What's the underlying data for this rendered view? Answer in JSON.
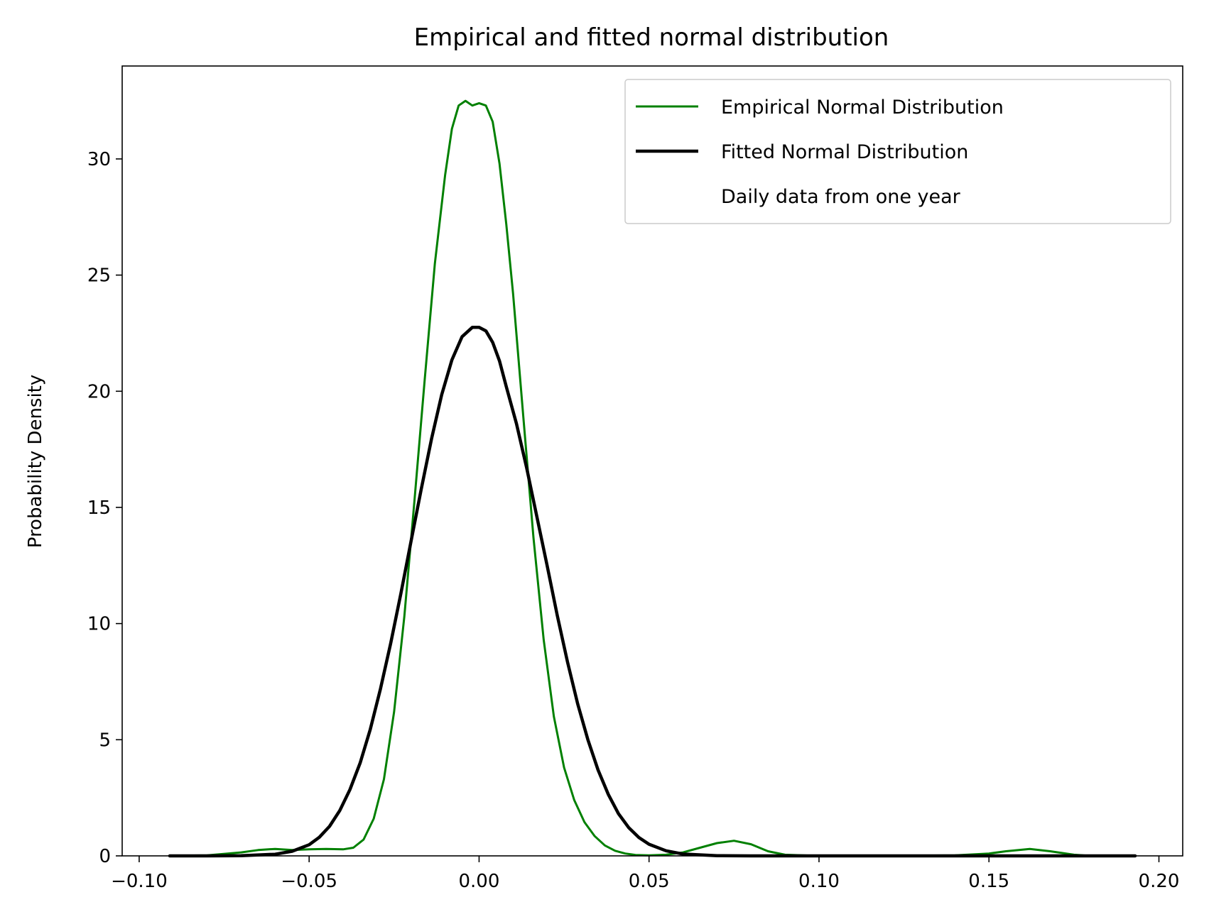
{
  "chart_data": {
    "type": "line",
    "title": "Empirical and fitted normal distribution",
    "xlabel": "",
    "ylabel": "Probability Density",
    "xlim": [
      -0.105,
      0.207
    ],
    "ylim": [
      0,
      34
    ],
    "xticks": [
      -0.1,
      -0.05,
      0.0,
      0.05,
      0.1,
      0.15,
      0.2
    ],
    "xtick_labels": [
      "−0.10",
      "−0.05",
      "0.00",
      "0.05",
      "0.10",
      "0.15",
      "0.20"
    ],
    "yticks": [
      0,
      5,
      10,
      15,
      20,
      25,
      30
    ],
    "ytick_labels": [
      "0",
      "5",
      "10",
      "15",
      "20",
      "25",
      "30"
    ],
    "grid": false,
    "legend_position": "top-right",
    "legend_note": "Daily data from one year",
    "series": [
      {
        "name": "Empirical Normal Distribution",
        "color": "#008000",
        "x": [
          -0.091,
          -0.08,
          -0.07,
          -0.065,
          -0.06,
          -0.055,
          -0.05,
          -0.045,
          -0.04,
          -0.037,
          -0.034,
          -0.031,
          -0.028,
          -0.025,
          -0.022,
          -0.019,
          -0.016,
          -0.013,
          -0.01,
          -0.008,
          -0.006,
          -0.004,
          -0.002,
          0.0,
          0.002,
          0.004,
          0.006,
          0.008,
          0.01,
          0.013,
          0.016,
          0.019,
          0.022,
          0.025,
          0.028,
          0.031,
          0.034,
          0.037,
          0.04,
          0.043,
          0.046,
          0.05,
          0.055,
          0.06,
          0.065,
          0.07,
          0.075,
          0.08,
          0.085,
          0.09,
          0.1,
          0.12,
          0.14,
          0.15,
          0.155,
          0.162,
          0.168,
          0.175,
          0.18,
          0.193
        ],
        "y": [
          0.0,
          0.02,
          0.15,
          0.25,
          0.3,
          0.25,
          0.28,
          0.3,
          0.28,
          0.35,
          0.7,
          1.6,
          3.3,
          6.2,
          10.3,
          15.3,
          20.5,
          25.5,
          29.3,
          31.3,
          32.3,
          32.5,
          32.3,
          32.4,
          32.3,
          31.6,
          29.8,
          27.2,
          24.2,
          18.9,
          13.7,
          9.3,
          6.0,
          3.8,
          2.4,
          1.45,
          0.85,
          0.45,
          0.22,
          0.1,
          0.04,
          0.02,
          0.05,
          0.15,
          0.35,
          0.55,
          0.65,
          0.5,
          0.2,
          0.05,
          0.0,
          0.0,
          0.02,
          0.1,
          0.2,
          0.3,
          0.2,
          0.05,
          0.0,
          0.0
        ]
      },
      {
        "name": "Fitted Normal Distribution",
        "color": "#000000",
        "x": [
          -0.091,
          -0.08,
          -0.07,
          -0.06,
          -0.055,
          -0.05,
          -0.047,
          -0.044,
          -0.041,
          -0.038,
          -0.035,
          -0.032,
          -0.029,
          -0.026,
          -0.023,
          -0.02,
          -0.017,
          -0.014,
          -0.011,
          -0.008,
          -0.005,
          -0.002,
          0.0,
          0.002,
          0.004,
          0.006,
          0.008,
          0.011,
          0.014,
          0.017,
          0.02,
          0.023,
          0.026,
          0.029,
          0.032,
          0.035,
          0.038,
          0.041,
          0.044,
          0.047,
          0.05,
          0.055,
          0.06,
          0.07,
          0.08,
          0.1,
          0.15,
          0.193
        ],
        "y": [
          0.0,
          0.0,
          0.01,
          0.07,
          0.2,
          0.48,
          0.8,
          1.27,
          1.95,
          2.85,
          4.0,
          5.45,
          7.2,
          9.15,
          11.3,
          13.55,
          15.8,
          17.95,
          19.85,
          21.35,
          22.35,
          22.75,
          22.75,
          22.6,
          22.1,
          21.3,
          20.2,
          18.6,
          16.7,
          14.6,
          12.5,
          10.35,
          8.35,
          6.55,
          5.0,
          3.7,
          2.65,
          1.82,
          1.22,
          0.79,
          0.5,
          0.22,
          0.08,
          0.01,
          0.0,
          0.0,
          0.0,
          0.0
        ]
      }
    ]
  }
}
